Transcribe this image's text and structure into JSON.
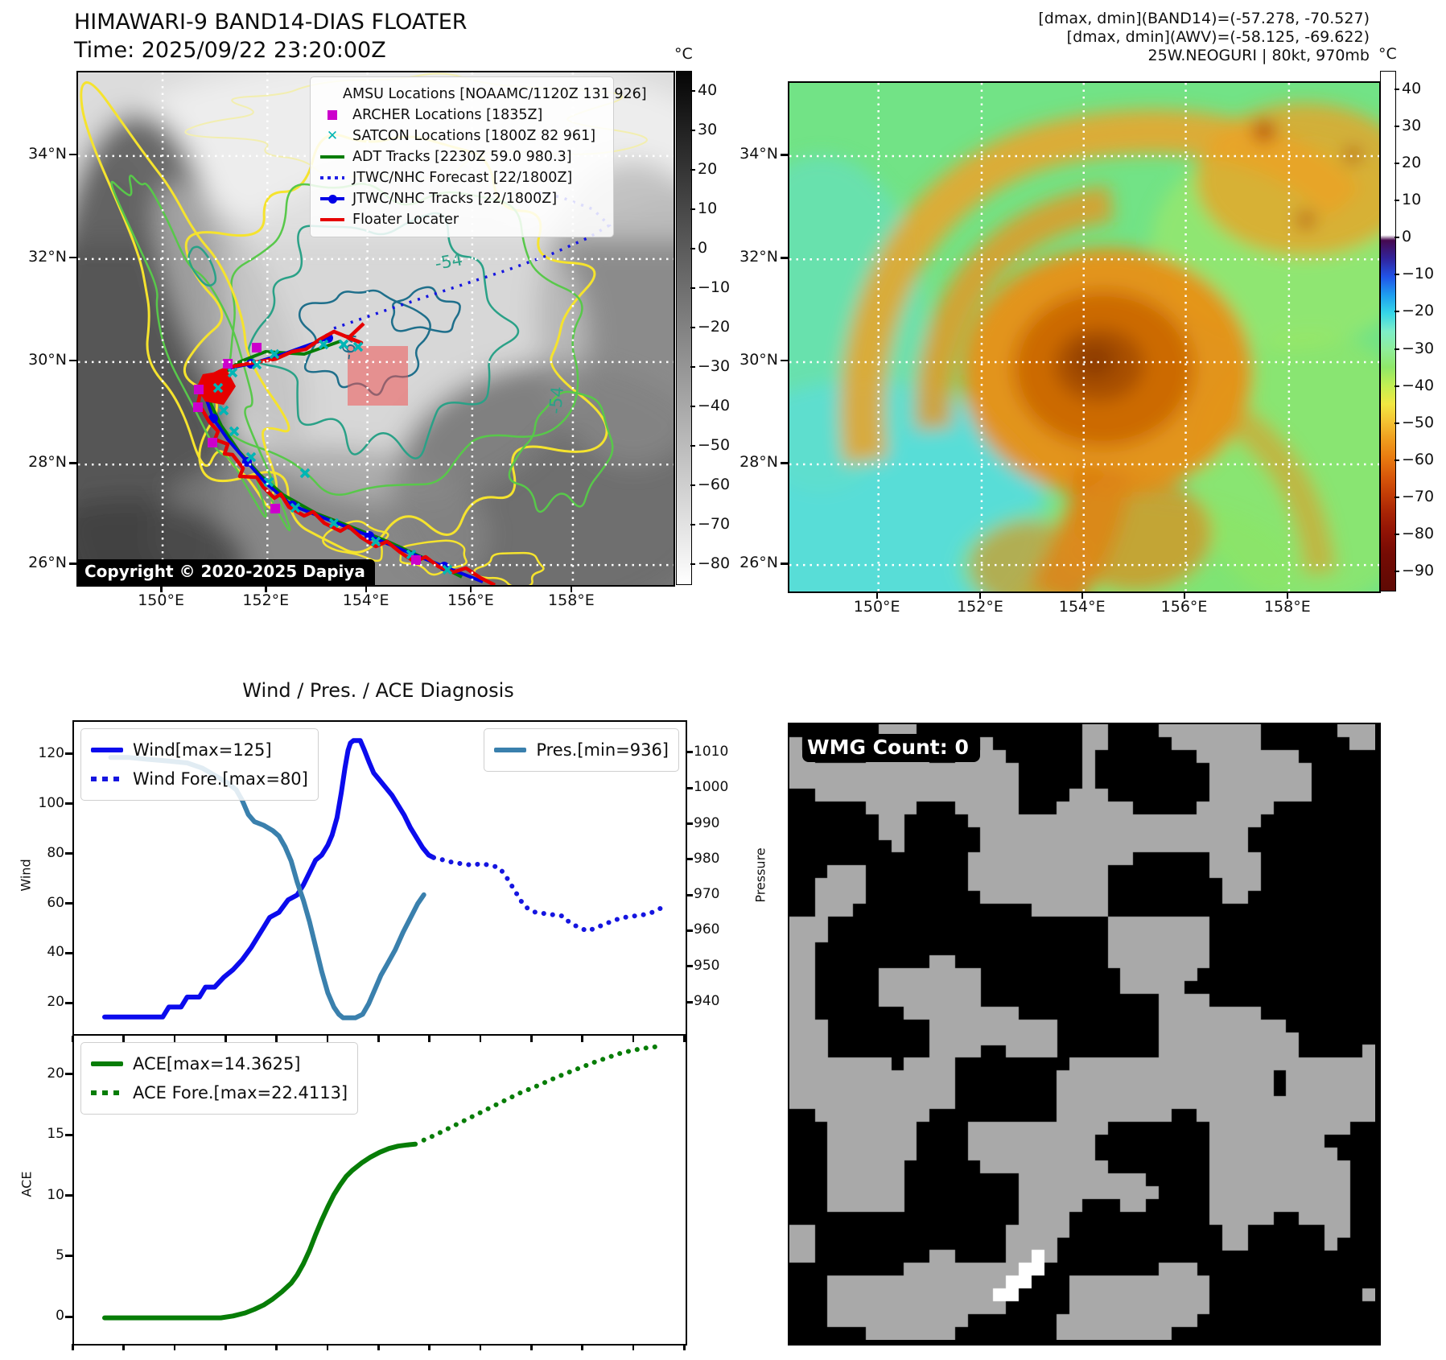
{
  "left_panel": {
    "title": "HIMAWARI-9 BAND14-DIAS FLOATER",
    "subtitle": "Time: 2025/09/22 23:20:00Z",
    "copyright": "Copyright © 2020-2025 Dapiya",
    "legend": [
      {
        "marker": "square",
        "color": "#cc00cc",
        "label": "AMSU Locations [NOAAMC/1120Z 131 926]"
      },
      {
        "marker": "square",
        "color": "#cc00cc",
        "label": "ARCHER Locations [1835Z]"
      },
      {
        "marker": "x",
        "color": "#00b5b5",
        "label": "SATCON Locations [1800Z 82 961]"
      },
      {
        "marker": "line",
        "color": "#067d06",
        "label": "ADT Tracks [2230Z 59.0 980.3]"
      },
      {
        "marker": "dotted",
        "color": "#2020e6",
        "label": "JTWC/NHC Forecast [22/1800Z]"
      },
      {
        "marker": "line-dot",
        "color": "#0000e6",
        "label": "JTWC/NHC Tracks [22/1800Z]"
      },
      {
        "marker": "line",
        "color": "#e60000",
        "label": "Floater Locater"
      }
    ],
    "lat_ticks": [
      "34°N",
      "32°N",
      "30°N",
      "28°N",
      "26°N"
    ],
    "lon_ticks": [
      "150°E",
      "152°E",
      "154°E",
      "156°E",
      "158°E"
    ],
    "colorbar": {
      "unit": "°C",
      "ticks": [
        40,
        30,
        20,
        10,
        0,
        -10,
        -20,
        -30,
        -40,
        -50,
        -60,
        -70,
        -80
      ]
    },
    "contour_labels": [
      "-54",
      "-64",
      "-54"
    ]
  },
  "right_panel": {
    "annotations": [
      "[dmax, dmin](BAND14)=(-57.278, -70.527)",
      "[dmax, dmin](AWV)=(-58.125, -69.622)",
      "25W.NEOGURI | 80kt, 970mb"
    ],
    "lat_ticks": [
      "34°N",
      "32°N",
      "30°N",
      "28°N",
      "26°N"
    ],
    "lon_ticks": [
      "150°E",
      "152°E",
      "154°E",
      "156°E",
      "158°E"
    ],
    "colorbar": {
      "unit": "°C",
      "ticks": [
        40,
        30,
        20,
        10,
        0,
        -10,
        -20,
        -30,
        -40,
        -50,
        -60,
        -70,
        -80,
        -90
      ]
    }
  },
  "bottom_left": {
    "title": "Wind / Pres. / ACE Diagnosis"
  },
  "bottom_right": {
    "wmg_count_label": "WMG Count: 0"
  },
  "colors": {
    "wind": "#0b0bed",
    "wind_forecast": "#1515e0",
    "pressure": "#3a80ad",
    "ace": "#077d07",
    "track_red": "#e60000",
    "track_blue": "#0000e6",
    "track_green": "#067d06",
    "satcon_cyan": "#00b5b5",
    "amsu_magenta": "#cc00cc",
    "contour_yellow": "#f5e32e",
    "contour_green": "#58c84a",
    "contour_teal": "#2aa187",
    "contour_darkteal": "#1f6f8b"
  },
  "chart_data": [
    {
      "id": "wind-pres",
      "type": "line",
      "title": "Wind / Pres. / ACE Diagnosis",
      "grid": false,
      "left_axis": {
        "label": "Wind",
        "ticks": [
          20,
          40,
          60,
          80,
          100,
          120
        ],
        "range": [
          7.5,
          133.5
        ]
      },
      "right_axis": {
        "label": "Pressure",
        "ticks": [
          940,
          950,
          960,
          970,
          980,
          990,
          1000,
          1010
        ],
        "range": [
          931,
          1019
        ]
      },
      "legend_upper_left": [
        "Wind[max=125]",
        "Wind Fore.[max=80]"
      ],
      "legend_upper_right": [
        "Pres.[min=936]"
      ],
      "series": [
        {
          "name": "Wind[max=125]",
          "axis": "left",
          "style": "solid",
          "color": "#0b0bed",
          "width": 6,
          "points": [
            [
              0.05,
              15
            ],
            [
              0.1,
              15
            ],
            [
              0.145,
              15
            ],
            [
              0.155,
              19
            ],
            [
              0.175,
              19
            ],
            [
              0.185,
              23
            ],
            [
              0.205,
              23
            ],
            [
              0.215,
              27
            ],
            [
              0.23,
              27
            ],
            [
              0.245,
              31
            ],
            [
              0.26,
              34
            ],
            [
              0.275,
              38
            ],
            [
              0.29,
              43
            ],
            [
              0.3,
              47
            ],
            [
              0.31,
              51
            ],
            [
              0.32,
              55
            ],
            [
              0.335,
              57
            ],
            [
              0.35,
              62
            ],
            [
              0.365,
              64
            ],
            [
              0.375,
              68
            ],
            [
              0.385,
              73
            ],
            [
              0.395,
              78
            ],
            [
              0.405,
              80
            ],
            [
              0.415,
              84
            ],
            [
              0.422,
              88
            ],
            [
              0.43,
              95
            ],
            [
              0.437,
              105
            ],
            [
              0.443,
              115
            ],
            [
              0.448,
              122
            ],
            [
              0.452,
              125
            ],
            [
              0.457,
              126
            ],
            [
              0.468,
              126
            ],
            [
              0.475,
              122
            ],
            [
              0.483,
              117
            ],
            [
              0.49,
              113
            ],
            [
              0.5,
              110
            ],
            [
              0.51,
              107
            ],
            [
              0.52,
              104
            ],
            [
              0.53,
              100
            ],
            [
              0.54,
              96
            ],
            [
              0.55,
              91
            ],
            [
              0.56,
              87
            ],
            [
              0.57,
              83
            ],
            [
              0.58,
              80
            ],
            [
              0.588,
              79
            ]
          ]
        },
        {
          "name": "Wind Fore.[max=80]",
          "axis": "left",
          "style": "dotted",
          "color": "#1515e0",
          "width": 6,
          "points": [
            [
              0.588,
              79
            ],
            [
              0.605,
              78
            ],
            [
              0.62,
              77
            ],
            [
              0.635,
              76.5
            ],
            [
              0.65,
              76
            ],
            [
              0.665,
              76.5
            ],
            [
              0.68,
              76
            ],
            [
              0.695,
              75
            ],
            [
              0.705,
              72
            ],
            [
              0.715,
              68
            ],
            [
              0.725,
              64
            ],
            [
              0.735,
              60
            ],
            [
              0.745,
              58
            ],
            [
              0.755,
              57
            ],
            [
              0.77,
              56.5
            ],
            [
              0.785,
              56
            ],
            [
              0.8,
              55.5
            ],
            [
              0.81,
              53
            ],
            [
              0.825,
              51
            ],
            [
              0.84,
              49.5
            ],
            [
              0.855,
              51
            ],
            [
              0.87,
              52.5
            ],
            [
              0.885,
              54
            ],
            [
              0.9,
              55
            ],
            [
              0.915,
              55.5
            ],
            [
              0.93,
              56
            ],
            [
              0.945,
              57
            ],
            [
              0.958,
              58.5
            ],
            [
              0.968,
              59.5
            ]
          ]
        },
        {
          "name": "Pres.[min=936]",
          "axis": "right",
          "style": "solid",
          "color": "#3a80ad",
          "width": 6,
          "points": [
            [
              0.06,
              1009
            ],
            [
              0.09,
              1009
            ],
            [
              0.12,
              1008.5
            ],
            [
              0.155,
              1008
            ],
            [
              0.185,
              1007.5
            ],
            [
              0.21,
              1006
            ],
            [
              0.23,
              1004
            ],
            [
              0.25,
              1002
            ],
            [
              0.265,
              1000
            ],
            [
              0.275,
              997
            ],
            [
              0.285,
              993
            ],
            [
              0.295,
              991
            ],
            [
              0.31,
              990
            ],
            [
              0.325,
              988.5
            ],
            [
              0.335,
              987
            ],
            [
              0.345,
              984
            ],
            [
              0.355,
              980
            ],
            [
              0.365,
              974
            ],
            [
              0.375,
              969
            ],
            [
              0.385,
              963
            ],
            [
              0.395,
              956
            ],
            [
              0.405,
              949
            ],
            [
              0.415,
              943
            ],
            [
              0.425,
              939
            ],
            [
              0.433,
              937
            ],
            [
              0.44,
              936
            ],
            [
              0.46,
              936
            ],
            [
              0.472,
              937
            ],
            [
              0.482,
              940
            ],
            [
              0.492,
              944
            ],
            [
              0.502,
              948
            ],
            [
              0.512,
              951
            ],
            [
              0.525,
              955
            ],
            [
              0.538,
              960
            ],
            [
              0.55,
              964
            ],
            [
              0.562,
              968
            ],
            [
              0.572,
              970.5
            ]
          ]
        }
      ]
    },
    {
      "id": "ace",
      "type": "line",
      "title": "",
      "grid": false,
      "left_axis": {
        "label": "ACE",
        "ticks": [
          0,
          5,
          10,
          15,
          20
        ],
        "range": [
          -2.1,
          23.3
        ]
      },
      "legend_upper_left": [
        "ACE[max=14.3625]",
        "ACE Fore.[max=22.4113]"
      ],
      "series": [
        {
          "name": "ACE[max=14.3625]",
          "axis": "left",
          "style": "solid",
          "color": "#077d07",
          "width": 6,
          "points": [
            [
              0.05,
              0.05
            ],
            [
              0.1,
              0.05
            ],
            [
              0.15,
              0.05
            ],
            [
              0.2,
              0.05
            ],
            [
              0.24,
              0.05
            ],
            [
              0.26,
              0.2
            ],
            [
              0.28,
              0.45
            ],
            [
              0.295,
              0.75
            ],
            [
              0.31,
              1.1
            ],
            [
              0.325,
              1.6
            ],
            [
              0.34,
              2.2
            ],
            [
              0.355,
              2.9
            ],
            [
              0.365,
              3.6
            ],
            [
              0.375,
              4.5
            ],
            [
              0.385,
              5.6
            ],
            [
              0.395,
              6.9
            ],
            [
              0.405,
              8.1
            ],
            [
              0.415,
              9.2
            ],
            [
              0.425,
              10.2
            ],
            [
              0.435,
              11.0
            ],
            [
              0.445,
              11.7
            ],
            [
              0.455,
              12.2
            ],
            [
              0.47,
              12.8
            ],
            [
              0.485,
              13.3
            ],
            [
              0.5,
              13.7
            ],
            [
              0.515,
              14.0
            ],
            [
              0.53,
              14.2
            ],
            [
              0.545,
              14.3
            ],
            [
              0.558,
              14.36
            ]
          ]
        },
        {
          "name": "ACE Fore.[max=22.4113]",
          "axis": "left",
          "style": "dotted",
          "color": "#077d07",
          "width": 6,
          "points": [
            [
              0.572,
              14.7
            ],
            [
              0.59,
              15.1
            ],
            [
              0.61,
              15.6
            ],
            [
              0.63,
              16.1
            ],
            [
              0.65,
              16.6
            ],
            [
              0.67,
              17.1
            ],
            [
              0.69,
              17.6
            ],
            [
              0.71,
              18.1
            ],
            [
              0.73,
              18.6
            ],
            [
              0.75,
              19.0
            ],
            [
              0.77,
              19.45
            ],
            [
              0.79,
              19.9
            ],
            [
              0.81,
              20.3
            ],
            [
              0.83,
              20.7
            ],
            [
              0.85,
              21.1
            ],
            [
              0.87,
              21.45
            ],
            [
              0.89,
              21.8
            ],
            [
              0.91,
              22.05
            ],
            [
              0.93,
              22.25
            ],
            [
              0.95,
              22.38
            ],
            [
              0.962,
              22.41
            ]
          ]
        }
      ]
    }
  ]
}
